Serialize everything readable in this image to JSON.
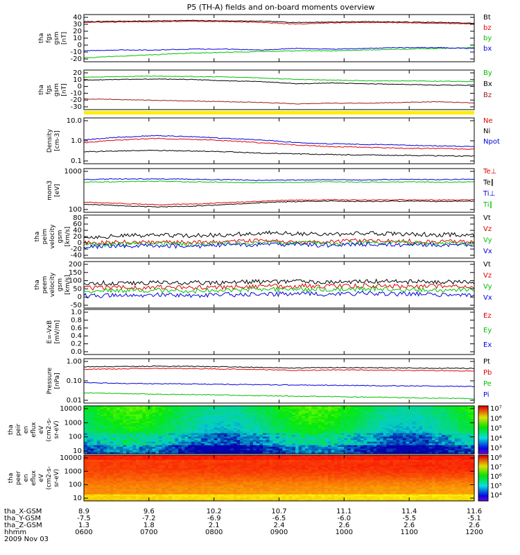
{
  "title": "P5 (TH-A) fields and on-board moments overview",
  "colors": {
    "black": "#000000",
    "red": "#e00000",
    "green": "#00c000",
    "blue": "#0000e0",
    "darkred": "#a01818",
    "yellow": "#ffee00"
  },
  "chart_data": [
    {
      "type": "line",
      "ylabel": [
        "tha",
        "fgs",
        "gsm",
        "[nT]"
      ],
      "yticks": [
        "40",
        "30",
        "20",
        "10",
        "0",
        "-10",
        "-20"
      ],
      "ylim": [
        -20,
        40
      ],
      "legend": [
        "Bt",
        "bz",
        "by",
        "bx"
      ],
      "series": [
        {
          "name": "Bt",
          "color": "black",
          "values": [
            31,
            31.5,
            32,
            32.5,
            32,
            31.5,
            30,
            30.5,
            31,
            30.5,
            30,
            29
          ]
        },
        {
          "name": "bz",
          "color": "red",
          "values": [
            30,
            30.5,
            31,
            31.5,
            31,
            30,
            28,
            29.5,
            30,
            29.5,
            29,
            28
          ]
        },
        {
          "name": "by",
          "color": "green",
          "values": [
            -15,
            -13,
            -11,
            -9,
            -8,
            -7,
            -6,
            -6,
            -5,
            -4,
            -3,
            -2
          ]
        },
        {
          "name": "bx",
          "color": "blue",
          "values": [
            -6,
            -5,
            -5,
            -4,
            -4,
            -5,
            -3,
            -4,
            -3,
            -2,
            -2,
            -3
          ]
        }
      ]
    },
    {
      "type": "line",
      "ylabel": [
        "tha",
        "fgs",
        "gsm",
        "[nT]"
      ],
      "yticks": [
        "20",
        "10",
        "0",
        "-10",
        "-20",
        "-30"
      ],
      "ylim": [
        -35,
        20
      ],
      "legend": [
        "By",
        "Bx",
        "Bz"
      ],
      "series": [
        {
          "name": "By",
          "color": "green",
          "values": [
            10,
            11,
            11.5,
            11,
            10.5,
            9,
            7,
            6,
            5,
            5,
            4.5,
            4
          ]
        },
        {
          "name": "Bx",
          "color": "black",
          "values": [
            6,
            7,
            7.5,
            7,
            5,
            4,
            1,
            2,
            1,
            0,
            -1,
            -1
          ]
        },
        {
          "name": "Bz",
          "color": "darkred",
          "values": [
            -20,
            -21,
            -22,
            -23,
            -24,
            -25,
            -27,
            -26,
            -26,
            -25,
            -24,
            -26
          ]
        }
      ]
    },
    {
      "type": "line",
      "yscale": "log",
      "ylabel": [
        "Density",
        "[cm-3]"
      ],
      "yticks": [
        "10.0",
        "1.0",
        "0.1"
      ],
      "ylim": [
        0.1,
        12
      ],
      "legend": [
        "Ne",
        "Ni",
        "Npot"
      ],
      "series": [
        {
          "name": "Ne",
          "color": "red",
          "values": [
            0.9,
            1.2,
            1.4,
            1.3,
            1.1,
            0.9,
            0.7,
            0.6,
            0.55,
            0.5,
            0.5,
            0.45
          ]
        },
        {
          "name": "Ni",
          "color": "black",
          "values": [
            0.35,
            0.38,
            0.4,
            0.38,
            0.35,
            0.3,
            0.28,
            0.26,
            0.25,
            0.24,
            0.23,
            0.22
          ]
        },
        {
          "name": "Npot",
          "color": "blue",
          "values": [
            1.2,
            1.6,
            1.9,
            1.7,
            1.4,
            1.2,
            0.9,
            0.8,
            0.75,
            0.7,
            0.65,
            0.6
          ]
        }
      ]
    },
    {
      "type": "line",
      "yscale": "log",
      "ylabel": [
        "mom3",
        "[eV]"
      ],
      "yticks": [
        "1000",
        "100"
      ],
      "ylim": [
        80,
        8000
      ],
      "legend": [
        "Te⊥",
        "Te∥",
        "Ti⊥",
        "Ti∥"
      ],
      "series": [
        {
          "name": "Te⊥",
          "color": "red",
          "values": [
            230,
            200,
            180,
            190,
            220,
            260,
            290,
            300,
            290,
            300,
            290,
            300
          ]
        },
        {
          "name": "Te∥",
          "color": "black",
          "values": [
            190,
            160,
            140,
            150,
            180,
            220,
            250,
            260,
            250,
            260,
            250,
            260
          ]
        },
        {
          "name": "Ti⊥",
          "color": "blue",
          "values": [
            2500,
            2700,
            2700,
            2600,
            2500,
            2300,
            2400,
            2500,
            2400,
            2600,
            2500,
            2600
          ]
        },
        {
          "name": "Ti∥",
          "color": "green",
          "values": [
            1900,
            2000,
            2100,
            2000,
            1900,
            1800,
            1900,
            2000,
            1900,
            2000,
            1900,
            2000
          ]
        }
      ]
    },
    {
      "type": "line",
      "ylabel": [
        "tha",
        "peim",
        "velocity",
        "gsm",
        "[km/s]"
      ],
      "yticks": [
        "80",
        "60",
        "40",
        "20",
        "0",
        "-20",
        "-40"
      ],
      "ylim": [
        -40,
        80
      ],
      "legend": [
        "Vt",
        "Vz",
        "Vy",
        "Vx"
      ],
      "series": [
        {
          "name": "Vt",
          "color": "black",
          "values": [
            18,
            22,
            24,
            22,
            25,
            30,
            28,
            26,
            30,
            27,
            25,
            26
          ]
        },
        {
          "name": "Vz",
          "color": "red",
          "values": [
            2,
            4,
            5,
            3,
            6,
            8,
            6,
            5,
            10,
            7,
            6,
            5
          ]
        },
        {
          "name": "Vy",
          "color": "green",
          "values": [
            -3,
            -1,
            0,
            -2,
            1,
            3,
            2,
            1,
            4,
            2,
            1,
            0
          ]
        },
        {
          "name": "Vx",
          "color": "blue",
          "values": [
            -8,
            -6,
            -5,
            -7,
            -4,
            -2,
            -3,
            -4,
            -1,
            -3,
            -4,
            -5
          ]
        }
      ]
    },
    {
      "type": "line",
      "ylabel": [
        "tha",
        "peem",
        "velocity",
        "gsm",
        "[km/s]"
      ],
      "yticks": [
        "200",
        "150",
        "100",
        "50",
        "0",
        "-50"
      ],
      "ylim": [
        -100,
        200
      ],
      "legend": [
        "Vt",
        "Vz",
        "Vy",
        "Vx"
      ],
      "series": [
        {
          "name": "Vt",
          "color": "black",
          "values": [
            60,
            62,
            64,
            62,
            66,
            70,
            72,
            70,
            74,
            70,
            68,
            66
          ]
        },
        {
          "name": "Vz",
          "color": "red",
          "values": [
            30,
            32,
            34,
            30,
            36,
            40,
            42,
            40,
            44,
            40,
            38,
            36
          ]
        },
        {
          "name": "Vy",
          "color": "green",
          "values": [
            10,
            12,
            14,
            10,
            16,
            20,
            22,
            20,
            24,
            20,
            18,
            16
          ]
        },
        {
          "name": "Vx",
          "color": "blue",
          "values": [
            -20,
            -18,
            -16,
            -20,
            -14,
            -10,
            -8,
            -10,
            -6,
            -10,
            -12,
            -14
          ]
        }
      ]
    },
    {
      "type": "line",
      "ylabel": [
        "E=-VxB",
        "[mV/m]"
      ],
      "yticks": [
        "1.0",
        "0.8",
        "0.6",
        "0.4",
        "0.2",
        "0.0"
      ],
      "ylim": [
        0,
        1
      ],
      "legend": [
        "Ez",
        "Ey",
        "Ex"
      ],
      "series": []
    },
    {
      "type": "line",
      "yscale": "log",
      "ylabel": [
        "Pressure",
        "[nPa]"
      ],
      "yticks": [
        "1.00",
        "0.10",
        "0.01"
      ],
      "ylim": [
        0.01,
        1.2
      ],
      "legend": [
        "Pt",
        "Pb",
        "Pe",
        "Pi"
      ],
      "series": [
        {
          "name": "Pt",
          "color": "black",
          "values": [
            0.5,
            0.52,
            0.53,
            0.52,
            0.5,
            0.47,
            0.44,
            0.46,
            0.45,
            0.44,
            0.43,
            0.42
          ]
        },
        {
          "name": "Pb",
          "color": "red",
          "values": [
            0.38,
            0.4,
            0.42,
            0.41,
            0.39,
            0.37,
            0.34,
            0.36,
            0.35,
            0.34,
            0.33,
            0.32
          ]
        },
        {
          "name": "Pe",
          "color": "green",
          "values": [
            0.03,
            0.028,
            0.026,
            0.025,
            0.024,
            0.022,
            0.021,
            0.02,
            0.019,
            0.018,
            0.017,
            0.016
          ]
        },
        {
          "name": "Pi",
          "color": "blue",
          "values": [
            0.09,
            0.085,
            0.08,
            0.078,
            0.075,
            0.072,
            0.07,
            0.068,
            0.066,
            0.064,
            0.062,
            0.06
          ]
        }
      ]
    },
    {
      "type": "heatmap",
      "ylabel": [
        "tha",
        "peir",
        "en",
        "eflux",
        "eV",
        "(cm2-s-",
        "sr-eV)"
      ],
      "yscale": "log",
      "yticks": [
        "10000",
        "1000",
        "100",
        "10"
      ],
      "ylim": [
        5,
        25000
      ],
      "colorbar_ticks": [
        "10⁷",
        "10⁶",
        "10⁵",
        "10⁴",
        "10³"
      ]
    },
    {
      "type": "heatmap",
      "ylabel": [
        "tha",
        "peer",
        "en",
        "eflux",
        "eV",
        "(cm2-s-",
        "sr-eV)"
      ],
      "yscale": "log",
      "yticks": [
        "10000",
        "1000",
        "100",
        "10"
      ],
      "ylim": [
        5,
        25000
      ],
      "colorbar_ticks": [
        "10⁸",
        "10⁷",
        "10⁶",
        "10⁵",
        "10⁴"
      ]
    }
  ],
  "xaxis": {
    "rows": [
      {
        "label": "tha_X-GSM",
        "values": [
          "8.9",
          "9.6",
          "10.2",
          "10.7",
          "11.1",
          "11.4",
          "11.6"
        ]
      },
      {
        "label": "tha_Y-GSM",
        "values": [
          "-7.5",
          "-7.2",
          "-6.9",
          "-6.5",
          "-6.0",
          "-5.5",
          "-5.1"
        ]
      },
      {
        "label": "tha_Z-GSM",
        "values": [
          "1.3",
          "1.8",
          "2.1",
          "2.4",
          "2.6",
          "2.6",
          "2.6"
        ]
      },
      {
        "label": "hhmm",
        "values": [
          "0600",
          "0700",
          "0800",
          "0900",
          "1000",
          "1100",
          "1200"
        ]
      }
    ],
    "date": "2009 Nov 03"
  }
}
